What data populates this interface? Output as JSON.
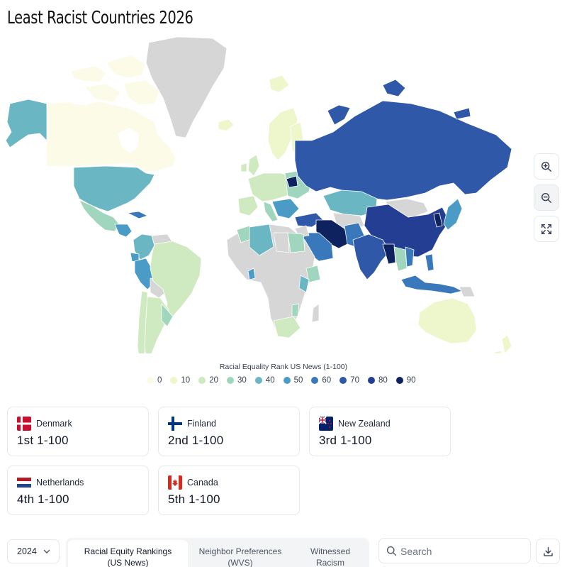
{
  "page": {
    "title": "Least Racist Countries 2026"
  },
  "map": {
    "scale_colors": {
      "0": "#fbfbe8",
      "10": "#eef6cc",
      "20": "#cfeac0",
      "30": "#9fd6bd",
      "40": "#6ab7c3",
      "50": "#4a9cc7",
      "60": "#3978bb",
      "70": "#2f58a8",
      "80": "#233e92",
      "90": "#0f2260"
    },
    "no_data_color": "#d6d6d6",
    "regions": [
      {
        "name": "Canada",
        "value": 95
      },
      {
        "name": "Alaska (USA)",
        "value": 40
      },
      {
        "name": "Greenland",
        "value": null
      },
      {
        "name": "United States",
        "value": 40
      },
      {
        "name": "Mexico",
        "value": 30
      },
      {
        "name": "Brazil",
        "value": 20
      },
      {
        "name": "Colombia",
        "value": 40
      },
      {
        "name": "Peru",
        "value": 50
      },
      {
        "name": "Argentina",
        "value": 20
      },
      {
        "name": "Russia",
        "value": 70
      },
      {
        "name": "Kazakhstan",
        "value": 40
      },
      {
        "name": "China",
        "value": 80
      },
      {
        "name": "Mongolia",
        "value": null
      },
      {
        "name": "India",
        "value": 70
      },
      {
        "name": "Iran",
        "value": 90
      },
      {
        "name": "Saudi Arabia",
        "value": 60
      },
      {
        "name": "Egypt",
        "value": 30
      },
      {
        "name": "Algeria",
        "value": 40
      },
      {
        "name": "Australia",
        "value": 10
      },
      {
        "name": "Indonesia",
        "value": 60
      },
      {
        "name": "Japan",
        "value": 50
      }
    ]
  },
  "map_controls": {
    "zoom_in_icon": "zoom-in-icon",
    "zoom_out_icon": "zoom-out-icon",
    "fullscreen_icon": "fullscreen-icon"
  },
  "legend": {
    "title": "Racial Equality Rank US News (1-100)",
    "items": [
      {
        "label": "0",
        "color": "#fbfbe8"
      },
      {
        "label": "10",
        "color": "#eef6cc"
      },
      {
        "label": "20",
        "color": "#cfeac0"
      },
      {
        "label": "30",
        "color": "#9fd6bd"
      },
      {
        "label": "40",
        "color": "#6ab7c3"
      },
      {
        "label": "50",
        "color": "#4a9cc7"
      },
      {
        "label": "60",
        "color": "#3978bb"
      },
      {
        "label": "70",
        "color": "#2f58a8"
      },
      {
        "label": "80",
        "color": "#233e92"
      },
      {
        "label": "90",
        "color": "#0f2260"
      }
    ]
  },
  "rankings": [
    {
      "country": "Denmark",
      "rank": "1st 1-100",
      "flag": "denmark-flag"
    },
    {
      "country": "Finland",
      "rank": "2nd 1-100",
      "flag": "finland-flag"
    },
    {
      "country": "New Zealand",
      "rank": "3rd 1-100",
      "flag": "new-zealand-flag"
    },
    {
      "country": "Netherlands",
      "rank": "4th 1-100",
      "flag": "netherlands-flag"
    },
    {
      "country": "Canada",
      "rank": "5th 1-100",
      "flag": "canada-flag"
    }
  ],
  "controls": {
    "year": "2024",
    "tabs": [
      {
        "label_line1": "Racial Equity Rankings",
        "label_line2": "(US News)",
        "active": true
      },
      {
        "label_line1": "Neighbor Preferences",
        "label_line2": "(WVS)",
        "active": false
      },
      {
        "label_line1": "Witnessed",
        "label_line2": "Racism",
        "active": false
      }
    ],
    "search_placeholder": "Search",
    "download_icon": "download-icon"
  }
}
